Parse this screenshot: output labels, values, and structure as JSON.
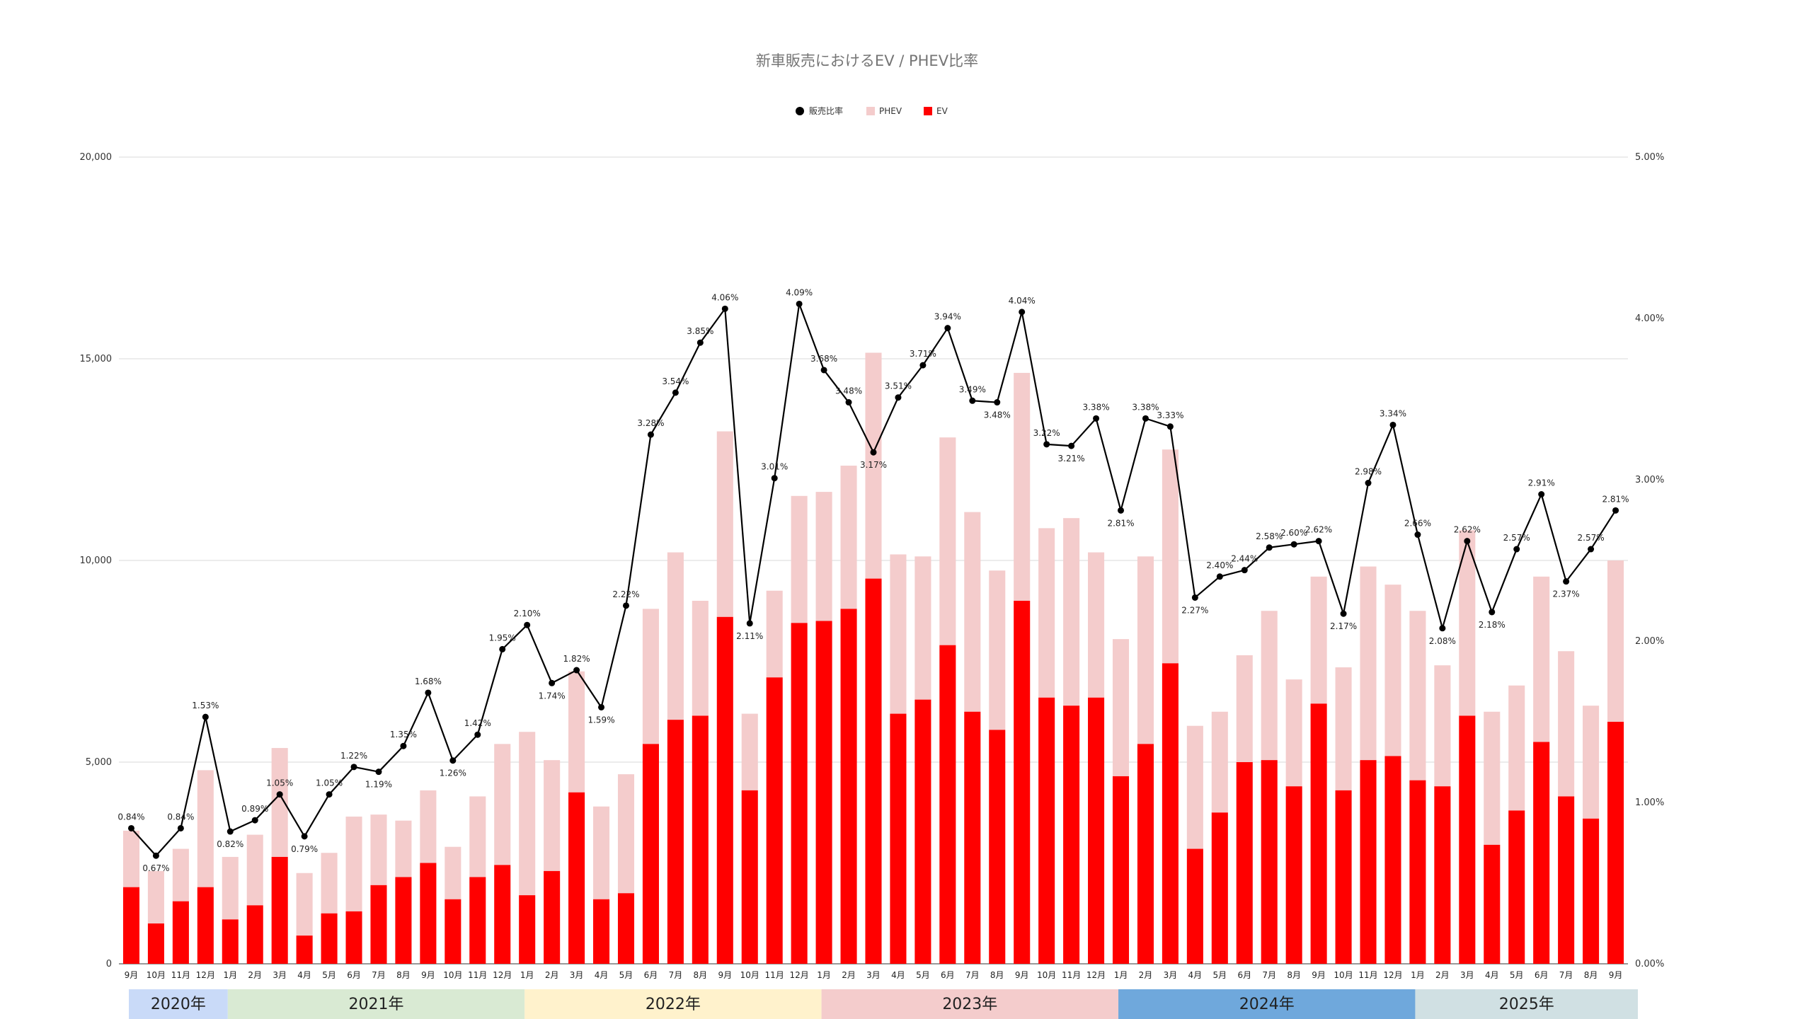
{
  "chart_data": {
    "type": "bar",
    "title": "新車販売におけるEV / PHEV比率",
    "stacked": true,
    "legend_position": "top",
    "grid": true,
    "categories": [
      "9月",
      "10月",
      "11月",
      "12月",
      "1月",
      "2月",
      "3月",
      "4月",
      "5月",
      "6月",
      "7月",
      "8月",
      "9月",
      "10月",
      "11月",
      "12月",
      "1月",
      "2月",
      "3月",
      "4月",
      "5月",
      "6月",
      "7月",
      "8月",
      "9月",
      "10月",
      "11月",
      "12月",
      "1月",
      "2月",
      "3月",
      "4月",
      "5月",
      "6月",
      "7月",
      "8月",
      "9月",
      "10月",
      "11月",
      "12月",
      "1月",
      "2月",
      "3月",
      "4月",
      "5月",
      "6月",
      "7月",
      "8月",
      "9月",
      "10月",
      "11月",
      "12月",
      "1月",
      "2月",
      "3月",
      "4月",
      "5月",
      "6月",
      "7月",
      "8月",
      "9月"
    ],
    "year_groups": [
      {
        "label": "2020年",
        "start": 0,
        "count": 4,
        "color": "#c9daf8"
      },
      {
        "label": "2021年",
        "start": 4,
        "count": 12,
        "color": "#d9ead3"
      },
      {
        "label": "2022年",
        "start": 16,
        "count": 12,
        "color": "#fff2cc"
      },
      {
        "label": "2023年",
        "start": 28,
        "count": 12,
        "color": "#f4cccc"
      },
      {
        "label": "2024年",
        "start": 40,
        "count": 12,
        "color": "#6fa8dc"
      },
      {
        "label": "2025年",
        "start": 52,
        "count": 9,
        "color": "#d0e0e3"
      }
    ],
    "y_left": {
      "min": 0,
      "max": 20000,
      "ticks": [
        0,
        5000,
        10000,
        15000,
        20000
      ],
      "tick_labels": [
        "0",
        "5,000",
        "10,000",
        "15,000",
        "20,000"
      ]
    },
    "y_right": {
      "min": 0,
      "max": 5,
      "ticks": [
        0,
        1,
        2,
        3,
        4,
        5
      ],
      "tick_labels": [
        "0.00%",
        "1.00%",
        "2.00%",
        "3.00%",
        "4.00%",
        "5.00%"
      ]
    },
    "series": [
      {
        "name": "EV",
        "type": "bar",
        "color": "#ff0000",
        "values": [
          1900,
          1000,
          1550,
          1900,
          1100,
          1450,
          2650,
          700,
          1250,
          1300,
          1950,
          2150,
          2500,
          1600,
          2150,
          2450,
          1700,
          2300,
          4250,
          1600,
          1750,
          5450,
          6050,
          6150,
          8600,
          4300,
          7100,
          8450,
          8500,
          8800,
          9550,
          6200,
          6550,
          7900,
          6250,
          5800,
          9000,
          6600,
          6400,
          6600,
          4650,
          5450,
          7450,
          2850,
          3750,
          5000,
          5050,
          4400,
          6450,
          4300,
          5050,
          5150,
          4550,
          4400,
          6150,
          2950,
          3800,
          5500,
          4150,
          3600,
          6000
        ]
      },
      {
        "name": "PHEV",
        "type": "bar",
        "color": "#f4cccc",
        "values": [
          1400,
          1300,
          1300,
          2900,
          1550,
          1750,
          2700,
          1550,
          1500,
          2350,
          1750,
          1400,
          1800,
          1300,
          2000,
          3000,
          4050,
          2750,
          3000,
          2300,
          2950,
          3350,
          4150,
          2850,
          4600,
          1900,
          2150,
          3150,
          3200,
          3550,
          5600,
          3950,
          3550,
          5150,
          4950,
          3950,
          5650,
          4200,
          4650,
          3600,
          3400,
          4650,
          5300,
          3050,
          2500,
          2650,
          3700,
          2650,
          3150,
          3050,
          4800,
          4250,
          4200,
          3000,
          4600,
          3300,
          3100,
          4100,
          3600,
          2800,
          4000
        ]
      },
      {
        "name": "販売比率",
        "type": "line",
        "color": "#000000",
        "axis": "right",
        "unit": "%",
        "values": [
          0.84,
          0.67,
          0.84,
          1.53,
          0.82,
          0.89,
          1.05,
          0.79,
          1.05,
          1.22,
          1.19,
          1.35,
          1.68,
          1.26,
          1.42,
          1.95,
          2.1,
          1.74,
          1.82,
          1.59,
          2.22,
          3.28,
          3.54,
          3.85,
          4.06,
          2.11,
          3.01,
          4.09,
          3.68,
          3.48,
          3.17,
          3.51,
          3.71,
          3.94,
          3.49,
          3.48,
          4.04,
          3.22,
          3.21,
          3.38,
          2.81,
          3.38,
          3.33,
          2.27,
          2.4,
          2.44,
          2.58,
          2.6,
          2.62,
          2.17,
          2.98,
          3.34,
          2.66,
          2.08,
          2.62,
          2.18,
          2.57,
          2.91,
          2.37,
          2.57,
          2.81
        ],
        "data_labels": [
          "0.84%",
          "0.67%",
          "0.84%",
          "1.53%",
          "0.82%",
          "0.89%",
          "1.05%",
          "0.79%",
          "1.05%",
          "1.22%",
          "1.19%",
          "1.35%",
          "1.68%",
          "1.26%",
          "1.42%",
          "1.95%",
          "2.10%",
          "1.74%",
          "1.82%",
          "1.59%",
          "2.22%",
          "3.28%",
          "3.54%",
          "3.85%",
          "4.06%",
          "2.11%",
          "3.01%",
          "4.09%",
          "3.68%",
          "3.48%",
          "3.17%",
          "3.51%",
          "3.71%",
          "3.94%",
          "3.49%",
          "3.48%",
          "4.04%",
          "3.22%",
          "3.21%",
          "3.38%",
          "2.81%",
          "3.38%",
          "3.33%",
          "2.27%",
          "2.40%",
          "2.44%",
          "2.58%",
          "2.60%",
          "2.62%",
          "2.17%",
          "2.98%",
          "3.34%",
          "2.66%",
          "2.08%",
          "2.62%",
          "2.18%",
          "2.57%",
          "2.91%",
          "2.37%",
          "2.57%",
          "2.81%"
        ]
      }
    ]
  }
}
